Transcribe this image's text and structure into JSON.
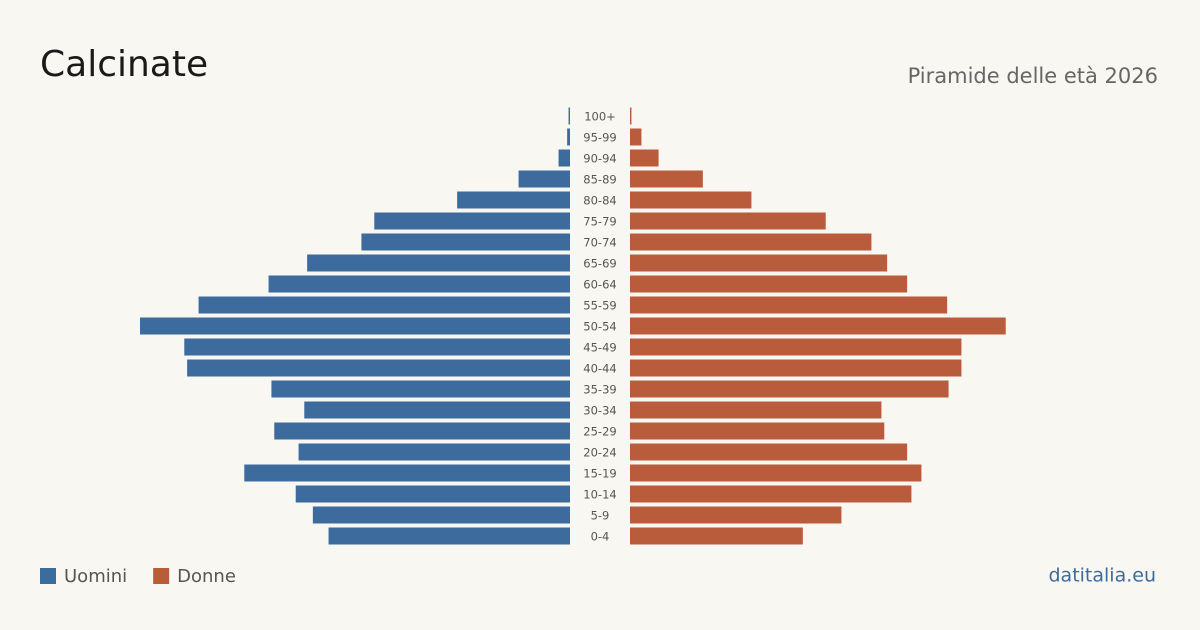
{
  "chart_data": {
    "type": "pyramid",
    "title": "Calcinate",
    "subtitle": "Piramide delle età 2026",
    "source": "datitalia.eu",
    "categories": [
      "100+",
      "95-99",
      "90-94",
      "85-89",
      "80-84",
      "75-79",
      "70-74",
      "65-69",
      "60-64",
      "55-59",
      "50-54",
      "45-49",
      "40-44",
      "35-39",
      "30-34",
      "25-29",
      "20-24",
      "15-19",
      "10-14",
      "5-9",
      "0-4"
    ],
    "series": [
      {
        "name": "Uomini",
        "color": "#3d6b9e",
        "values": [
          1,
          2,
          8,
          36,
          79,
          137,
          146,
          184,
          211,
          260,
          301,
          270,
          268,
          209,
          186,
          207,
          190,
          228,
          192,
          180,
          169
        ]
      },
      {
        "name": "Donne",
        "color": "#b95c3c",
        "values": [
          1,
          8,
          20,
          51,
          85,
          137,
          169,
          180,
          194,
          222,
          263,
          232,
          232,
          223,
          176,
          178,
          194,
          204,
          197,
          148,
          121
        ]
      }
    ],
    "legend": "bottom-left"
  }
}
